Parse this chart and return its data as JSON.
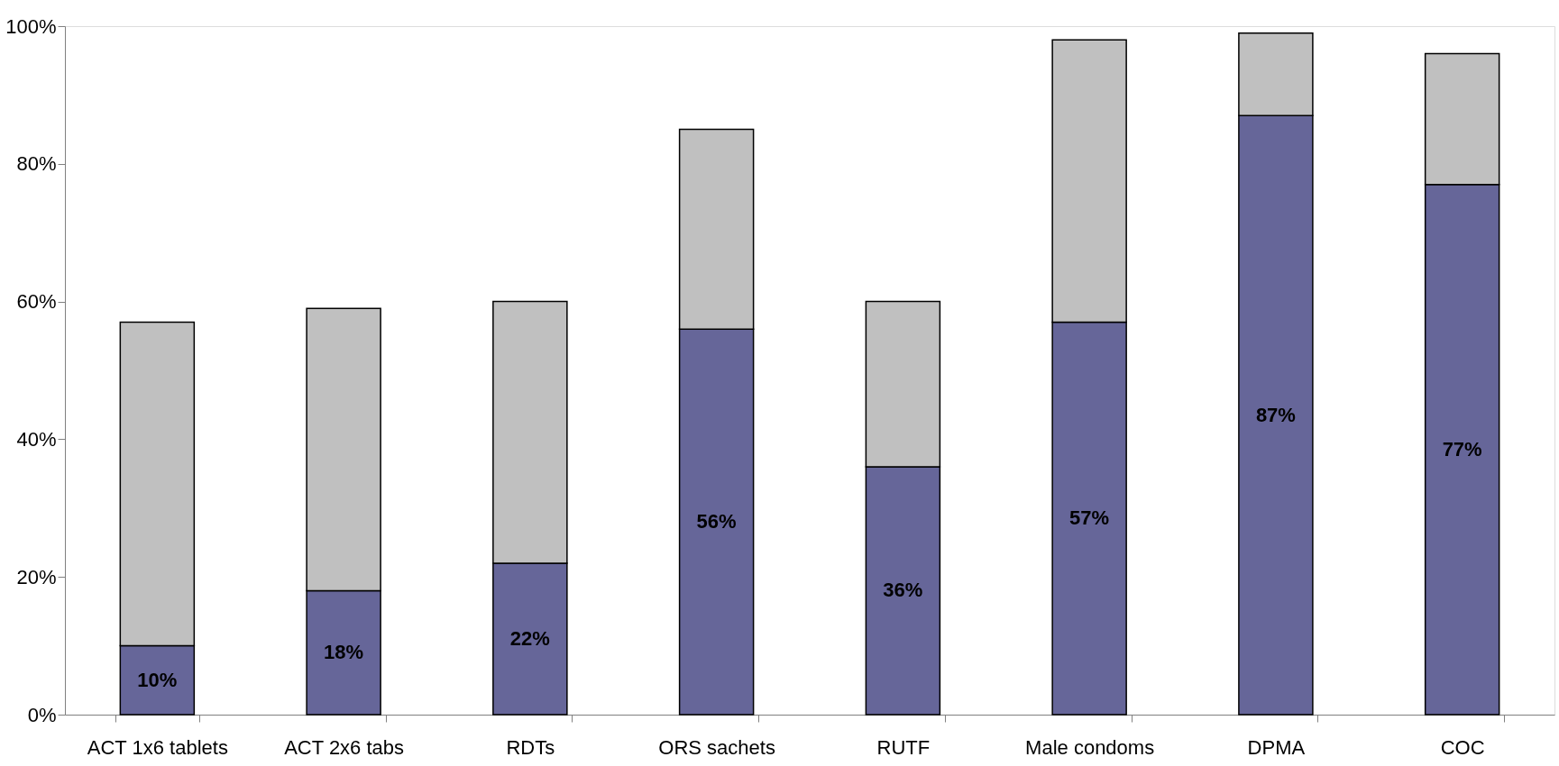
{
  "chart_data": {
    "type": "bar",
    "stacked": true,
    "categories": [
      "ACT 1x6 tablets",
      "ACT 2x6 tabs",
      "RDTs",
      "ORS sachets",
      "RUTF",
      "Male condoms",
      "DPMA",
      "COC"
    ],
    "series": [
      {
        "color": "#666699",
        "values": [
          10,
          18,
          22,
          56,
          36,
          57,
          87,
          77
        ],
        "value_labels": [
          "10%",
          "18%",
          "22%",
          "56%",
          "36%",
          "57%",
          "87%",
          "77%"
        ]
      },
      {
        "color": "#c0c0c0",
        "values": [
          47,
          41,
          38,
          29,
          24,
          41,
          12,
          19
        ]
      }
    ],
    "ylim": [
      0,
      100
    ],
    "yticks": [
      {
        "value": 0,
        "label": "0%"
      },
      {
        "value": 20,
        "label": "20%"
      },
      {
        "value": 40,
        "label": "40%"
      },
      {
        "value": 60,
        "label": "60%"
      },
      {
        "value": 80,
        "label": "80%"
      },
      {
        "value": 100,
        "label": "100%"
      }
    ],
    "grid": false
  }
}
